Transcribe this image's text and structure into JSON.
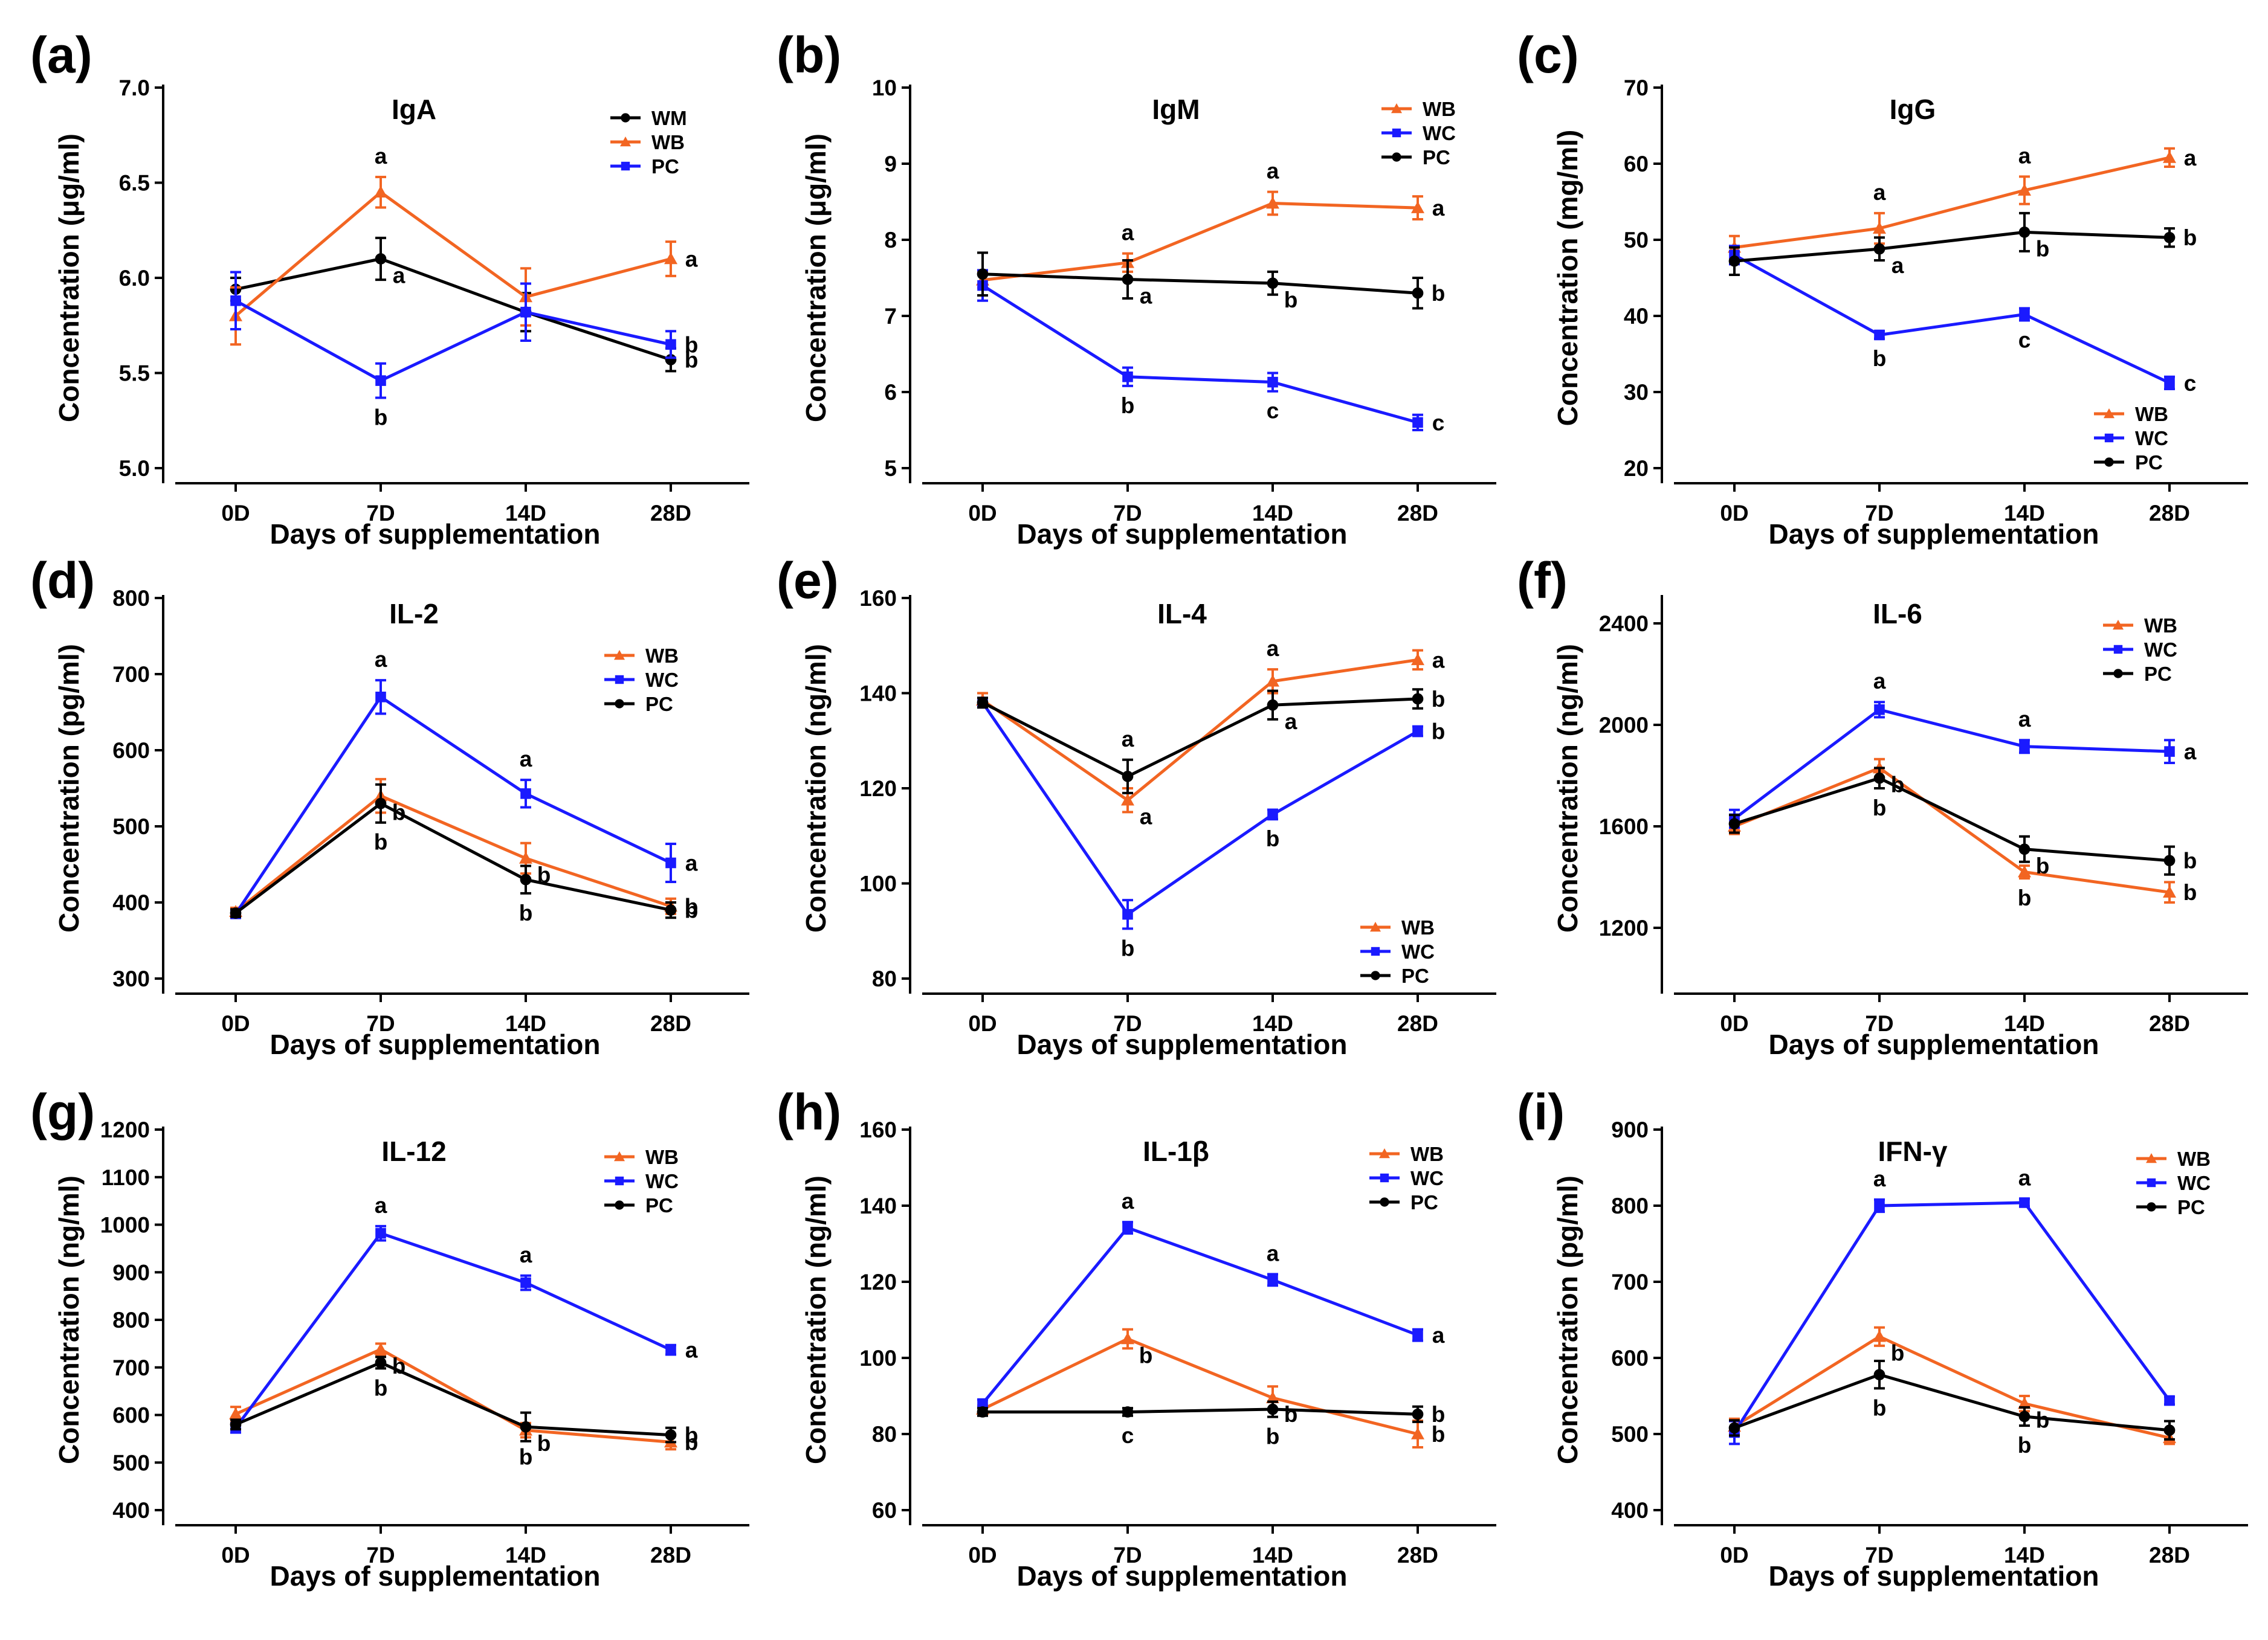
{
  "chart_data": [
    {
      "type": "line",
      "panel_label": "(a)",
      "title": "IgA",
      "xlabel": "Days of supplementation",
      "ylabel": "Concentration (μg/ml)",
      "categories": [
        "0D",
        "7D",
        "14D",
        "28D"
      ],
      "ylim": [
        5.0,
        7.0
      ],
      "yticks": [
        "5.0",
        "5.5",
        "6.0",
        "6.5",
        "7.0"
      ],
      "legend_position": "top-right",
      "series": [
        {
          "name": "WM",
          "color": "#000000",
          "marker": "circle",
          "values": [
            5.94,
            6.1,
            5.82,
            5.57
          ],
          "errors": [
            0.06,
            0.11,
            0.1,
            0.06
          ],
          "letters": [
            "",
            "a",
            "",
            "b"
          ]
        },
        {
          "name": "WB",
          "color": "#f26522",
          "marker": "triangle",
          "values": [
            5.8,
            6.45,
            5.9,
            6.1
          ],
          "errors": [
            0.15,
            0.08,
            0.15,
            0.09
          ],
          "letters": [
            "",
            "a",
            "",
            "a"
          ]
        },
        {
          "name": "PC",
          "color": "#1a1aff",
          "marker": "square",
          "values": [
            5.88,
            5.46,
            5.82,
            5.65
          ],
          "errors": [
            0.15,
            0.09,
            0.15,
            0.07
          ],
          "letters": [
            "",
            "b",
            "",
            "b"
          ]
        }
      ]
    },
    {
      "type": "line",
      "panel_label": "(b)",
      "title": "IgM",
      "xlabel": "Days of supplementation",
      "ylabel": "Concentration (μg/ml)",
      "categories": [
        "0D",
        "7D",
        "14D",
        "28D"
      ],
      "ylim": [
        5,
        10
      ],
      "yticks": [
        "5",
        "6",
        "7",
        "8",
        "9",
        "10"
      ],
      "legend_position": "top-right",
      "series": [
        {
          "name": "WB",
          "color": "#f26522",
          "marker": "triangle",
          "values": [
            7.47,
            7.7,
            8.48,
            8.42
          ],
          "errors": [
            0.1,
            0.12,
            0.15,
            0.15
          ],
          "letters": [
            "",
            "a",
            "a",
            "a"
          ]
        },
        {
          "name": "WC",
          "color": "#1a1aff",
          "marker": "square",
          "values": [
            7.4,
            6.2,
            6.13,
            5.6
          ],
          "errors": [
            0.2,
            0.12,
            0.12,
            0.1
          ],
          "letters": [
            "",
            "b",
            "c",
            "c"
          ]
        },
        {
          "name": "PC",
          "color": "#000000",
          "marker": "circle",
          "values": [
            7.55,
            7.48,
            7.43,
            7.3
          ],
          "errors": [
            0.28,
            0.25,
            0.15,
            0.2
          ],
          "letters": [
            "",
            "a",
            "b",
            "b"
          ]
        }
      ]
    },
    {
      "type": "line",
      "panel_label": "(c)",
      "title": "IgG",
      "xlabel": "Days of supplementation",
      "ylabel": "Concentration (mg/ml)",
      "categories": [
        "0D",
        "7D",
        "14D",
        "28D"
      ],
      "ylim": [
        20,
        70
      ],
      "yticks": [
        "20",
        "30",
        "40",
        "50",
        "60",
        "70"
      ],
      "legend_position": "bottom-right",
      "series": [
        {
          "name": "WB",
          "color": "#f26522",
          "marker": "triangle",
          "values": [
            49.0,
            51.5,
            56.5,
            60.8
          ],
          "errors": [
            1.5,
            2.0,
            1.8,
            1.2
          ],
          "letters": [
            "",
            "a",
            "a",
            "a"
          ]
        },
        {
          "name": "WC",
          "color": "#1a1aff",
          "marker": "square",
          "values": [
            48.0,
            37.5,
            40.2,
            31.2
          ],
          "errors": [
            1.2,
            0.5,
            0.8,
            0.8
          ],
          "letters": [
            "",
            "b",
            "c",
            "c"
          ]
        },
        {
          "name": "PC",
          "color": "#000000",
          "marker": "circle",
          "values": [
            47.2,
            48.8,
            51.0,
            50.3
          ],
          "errors": [
            1.8,
            1.5,
            2.5,
            1.2
          ],
          "letters": [
            "",
            "a",
            "b",
            "b"
          ]
        }
      ]
    },
    {
      "type": "line",
      "panel_label": "(d)",
      "title": "IL-2",
      "xlabel": "Days of supplementation",
      "ylabel": "Concentration (pg/ml)",
      "categories": [
        "0D",
        "7D",
        "14D",
        "28D"
      ],
      "ylim": [
        300,
        800
      ],
      "yticks": [
        "300",
        "400",
        "500",
        "600",
        "700",
        "800"
      ],
      "legend_position": "top-right",
      "series": [
        {
          "name": "WB",
          "color": "#f26522",
          "marker": "triangle",
          "values": [
            388,
            540,
            458,
            395
          ],
          "errors": [
            5,
            22,
            20,
            10
          ],
          "letters": [
            "",
            "b",
            "b",
            "b"
          ]
        },
        {
          "name": "WC",
          "color": "#1a1aff",
          "marker": "square",
          "values": [
            385,
            670,
            543,
            452
          ],
          "errors": [
            5,
            22,
            18,
            25
          ],
          "letters": [
            "",
            "a",
            "a",
            "a"
          ]
        },
        {
          "name": "PC",
          "color": "#000000",
          "marker": "circle",
          "values": [
            386,
            530,
            430,
            390
          ],
          "errors": [
            5,
            25,
            18,
            10
          ],
          "letters": [
            "",
            "b",
            "b",
            "b"
          ]
        }
      ]
    },
    {
      "type": "line",
      "panel_label": "(e)",
      "title": "IL-4",
      "xlabel": "Days of supplementation",
      "ylabel": "Concentration (ng/ml)",
      "categories": [
        "0D",
        "7D",
        "14D",
        "28D"
      ],
      "ylim": [
        80,
        160
      ],
      "yticks": [
        "80",
        "100",
        "120",
        "140",
        "160"
      ],
      "legend_position": "bottom-right",
      "series": [
        {
          "name": "WB",
          "color": "#f26522",
          "marker": "triangle",
          "values": [
            138.5,
            117.5,
            142.5,
            147.0
          ],
          "errors": [
            1.5,
            2.5,
            2.5,
            2.0
          ],
          "letters": [
            "",
            "a",
            "a",
            "a"
          ]
        },
        {
          "name": "WC",
          "color": "#1a1aff",
          "marker": "square",
          "values": [
            138.0,
            93.5,
            114.5,
            132.0
          ],
          "errors": [
            1.0,
            3.0,
            1.0,
            1.0
          ],
          "letters": [
            "",
            "b",
            "b",
            "b"
          ]
        },
        {
          "name": "PC",
          "color": "#000000",
          "marker": "circle",
          "values": [
            138.0,
            122.5,
            137.5,
            138.8
          ],
          "errors": [
            1.0,
            3.5,
            3.0,
            2.0
          ],
          "letters": [
            "",
            "a",
            "a",
            "b"
          ]
        }
      ]
    },
    {
      "type": "line",
      "panel_label": "(f)",
      "title": "IL-6",
      "xlabel": "Days of supplementation",
      "ylabel": "Concentration (ng/ml)",
      "categories": [
        "0D",
        "7D",
        "14D",
        "28D"
      ],
      "ylim": [
        1000,
        2500
      ],
      "yticks": [
        "1200",
        "1600",
        "2000",
        "2400"
      ],
      "legend_position": "top-right",
      "series": [
        {
          "name": "WB",
          "color": "#f26522",
          "marker": "triangle",
          "values": [
            1600,
            1830,
            1420,
            1340
          ],
          "errors": [
            30,
            35,
            25,
            40
          ],
          "letters": [
            "",
            "b",
            "b",
            "b"
          ]
        },
        {
          "name": "WC",
          "color": "#1a1aff",
          "marker": "square",
          "values": [
            1630,
            2060,
            1915,
            1895
          ],
          "errors": [
            35,
            30,
            25,
            45
          ],
          "letters": [
            "",
            "a",
            "a",
            "a"
          ]
        },
        {
          "name": "PC",
          "color": "#000000",
          "marker": "circle",
          "values": [
            1610,
            1790,
            1510,
            1465
          ],
          "errors": [
            35,
            40,
            50,
            55
          ],
          "letters": [
            "",
            "b",
            "b",
            "b"
          ]
        }
      ]
    },
    {
      "type": "line",
      "panel_label": "(g)",
      "title": "IL-12",
      "xlabel": "Days of supplementation",
      "ylabel": "Concentration (ng/ml)",
      "categories": [
        "0D",
        "7D",
        "14D",
        "28D"
      ],
      "ylim": [
        400,
        1200
      ],
      "yticks": [
        "400",
        "500",
        "600",
        "700",
        "800",
        "900",
        "1000",
        "1100",
        "1200"
      ],
      "legend_position": "top-right",
      "series": [
        {
          "name": "WB",
          "color": "#f26522",
          "marker": "triangle",
          "values": [
            602,
            738,
            568,
            543
          ],
          "errors": [
            15,
            12,
            15,
            15
          ],
          "letters": [
            "",
            "b",
            "b",
            "b"
          ]
        },
        {
          "name": "WC",
          "color": "#1a1aff",
          "marker": "square",
          "values": [
            573,
            982,
            878,
            737
          ],
          "errors": [
            10,
            15,
            15,
            10
          ],
          "letters": [
            "",
            "a",
            "a",
            "a"
          ]
        },
        {
          "name": "PC",
          "color": "#000000",
          "marker": "circle",
          "values": [
            580,
            710,
            575,
            558
          ],
          "errors": [
            10,
            12,
            30,
            15
          ],
          "letters": [
            "",
            "b",
            "b",
            "b"
          ]
        }
      ]
    },
    {
      "type": "line",
      "panel_label": "(h)",
      "title": "IL-1β",
      "xlabel": "Days of supplementation",
      "ylabel": "Concentration (ng/ml)",
      "categories": [
        "0D",
        "7D",
        "14D",
        "28D"
      ],
      "ylim": [
        60,
        160
      ],
      "yticks": [
        "60",
        "80",
        "100",
        "120",
        "140",
        "160"
      ],
      "legend_position": "top-right",
      "series": [
        {
          "name": "WB",
          "color": "#f26522",
          "marker": "triangle",
          "values": [
            86.5,
            105.0,
            89.5,
            80.0
          ],
          "errors": [
            1.0,
            2.5,
            3.0,
            3.5
          ],
          "letters": [
            "",
            "b",
            "b",
            "b"
          ]
        },
        {
          "name": "WC",
          "color": "#1a1aff",
          "marker": "square",
          "values": [
            88.0,
            134.2,
            120.5,
            106.0
          ],
          "errors": [
            1.0,
            1.5,
            1.5,
            1.5
          ],
          "letters": [
            "",
            "a",
            "a",
            "a"
          ]
        },
        {
          "name": "PC",
          "color": "#000000",
          "marker": "circle",
          "values": [
            85.8,
            85.8,
            86.5,
            85.2
          ],
          "errors": [
            1.0,
            1.0,
            2.0,
            2.0
          ],
          "letters": [
            "",
            "c",
            "b",
            "b"
          ]
        }
      ]
    },
    {
      "type": "line",
      "panel_label": "(i)",
      "title": "IFN-γ",
      "xlabel": "Days of supplementation",
      "ylabel": "Concentration (pg/ml)",
      "categories": [
        "0D",
        "7D",
        "14D",
        "28D"
      ],
      "ylim": [
        400,
        900
      ],
      "yticks": [
        "400",
        "500",
        "600",
        "700",
        "800",
        "900"
      ],
      "legend_position": "top-right",
      "series": [
        {
          "name": "WB",
          "color": "#f26522",
          "marker": "triangle",
          "values": [
            510,
            628,
            540,
            495
          ],
          "errors": [
            10,
            12,
            10,
            8
          ],
          "letters": [
            "",
            "b",
            "b",
            ""
          ]
        },
        {
          "name": "WC",
          "color": "#1a1aff",
          "marker": "square",
          "values": [
            502,
            800,
            804,
            544
          ],
          "errors": [
            15,
            8,
            5,
            5
          ],
          "letters": [
            "",
            "a",
            "a",
            ""
          ]
        },
        {
          "name": "PC",
          "color": "#000000",
          "marker": "circle",
          "values": [
            508,
            578,
            523,
            505
          ],
          "errors": [
            10,
            18,
            12,
            12
          ],
          "letters": [
            "",
            "b",
            "b",
            ""
          ]
        }
      ]
    }
  ]
}
